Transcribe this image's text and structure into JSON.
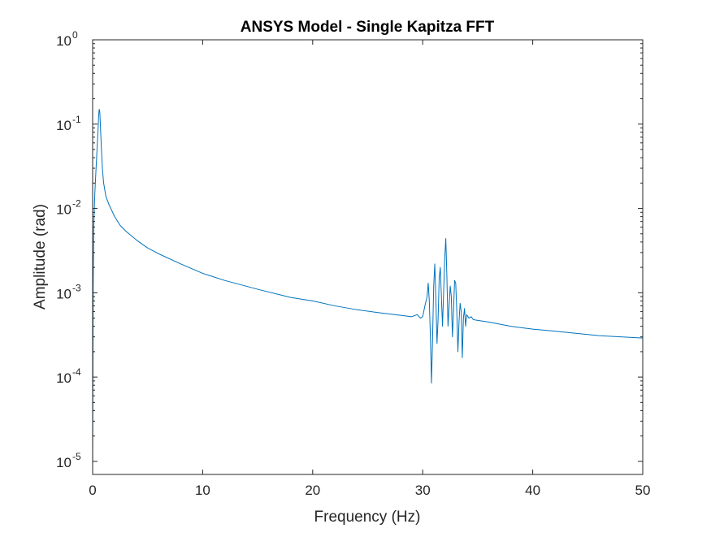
{
  "chart_data": {
    "type": "line",
    "title": "ANSYS Model - Single Kapitza FFT",
    "xlabel": "Frequency (Hz)",
    "ylabel": "Amplitude (rad)",
    "xlim": [
      0,
      50
    ],
    "ylim": [
      7e-06,
      1
    ],
    "yscale": "log",
    "grid": false,
    "line_color": "#0072BD",
    "xticks": [
      {
        "value": 0,
        "label": "0"
      },
      {
        "value": 10,
        "label": "10"
      },
      {
        "value": 20,
        "label": "20"
      },
      {
        "value": 30,
        "label": "30"
      },
      {
        "value": 40,
        "label": "40"
      },
      {
        "value": 50,
        "label": "50"
      }
    ],
    "yticks": [
      {
        "value": 1e-05,
        "base": "10",
        "exp": "-5"
      },
      {
        "value": 0.0001,
        "base": "10",
        "exp": "-4"
      },
      {
        "value": 0.001,
        "base": "10",
        "exp": "-3"
      },
      {
        "value": 0.01,
        "base": "10",
        "exp": "-2"
      },
      {
        "value": 0.1,
        "base": "10",
        "exp": "-1"
      },
      {
        "value": 1,
        "base": "10",
        "exp": "0"
      }
    ],
    "series": [
      {
        "x": [
          0,
          0.05,
          0.1,
          0.2,
          0.3,
          0.4,
          0.5,
          0.55,
          0.6,
          0.65,
          0.7,
          0.8,
          0.9,
          1.0,
          1.2,
          1.5,
          2.0,
          2.5,
          3.0,
          4.0,
          5.0,
          6.0,
          8.0,
          10.0,
          12.0,
          15.0,
          18.0,
          20.0,
          22.0,
          24.0,
          26.0,
          28.0,
          29.0,
          29.5,
          29.8,
          30.0,
          30.2,
          30.4,
          30.5,
          30.6,
          30.7,
          30.8,
          30.9,
          31.0,
          31.1,
          31.2,
          31.3,
          31.4,
          31.5,
          31.6,
          31.7,
          31.8,
          31.9,
          32.0,
          32.1,
          32.2,
          32.3,
          32.4,
          32.5,
          32.6,
          32.7,
          32.8,
          32.9,
          33.0,
          33.1,
          33.2,
          33.3,
          33.4,
          33.5,
          33.6,
          33.7,
          33.8,
          33.9,
          34.0,
          34.2,
          34.4,
          34.6,
          35.0,
          36.0,
          38.0,
          40.0,
          42.0,
          44.0,
          46.0,
          48.0,
          50.0
        ],
        "y": [
          7e-06,
          0.0012,
          0.006,
          0.015,
          0.028,
          0.05,
          0.09,
          0.13,
          0.15,
          0.14,
          0.1,
          0.05,
          0.028,
          0.02,
          0.014,
          0.011,
          0.008,
          0.0063,
          0.0054,
          0.0042,
          0.0034,
          0.0029,
          0.0022,
          0.0017,
          0.0014,
          0.0011,
          0.00088,
          0.0008,
          0.0007,
          0.00063,
          0.00058,
          0.00054,
          0.00052,
          0.00055,
          0.0005,
          0.00052,
          0.0007,
          0.0009,
          0.0013,
          0.0008,
          0.0003,
          8.5e-05,
          0.0003,
          0.0012,
          0.0022,
          0.0008,
          0.00025,
          0.0005,
          0.0015,
          0.002,
          0.0009,
          0.0004,
          0.001,
          0.0025,
          0.0044,
          0.0015,
          0.0004,
          0.0007,
          0.0012,
          0.0009,
          0.0003,
          0.0006,
          0.0014,
          0.0013,
          0.0006,
          0.0002,
          0.00045,
          0.00075,
          0.0006,
          0.00017,
          0.0005,
          0.00065,
          0.0004,
          0.00055,
          0.0005,
          0.00052,
          0.00048,
          0.00047,
          0.00045,
          0.0004,
          0.00037,
          0.00035,
          0.00033,
          0.00031,
          0.0003,
          0.00029
        ]
      }
    ]
  }
}
